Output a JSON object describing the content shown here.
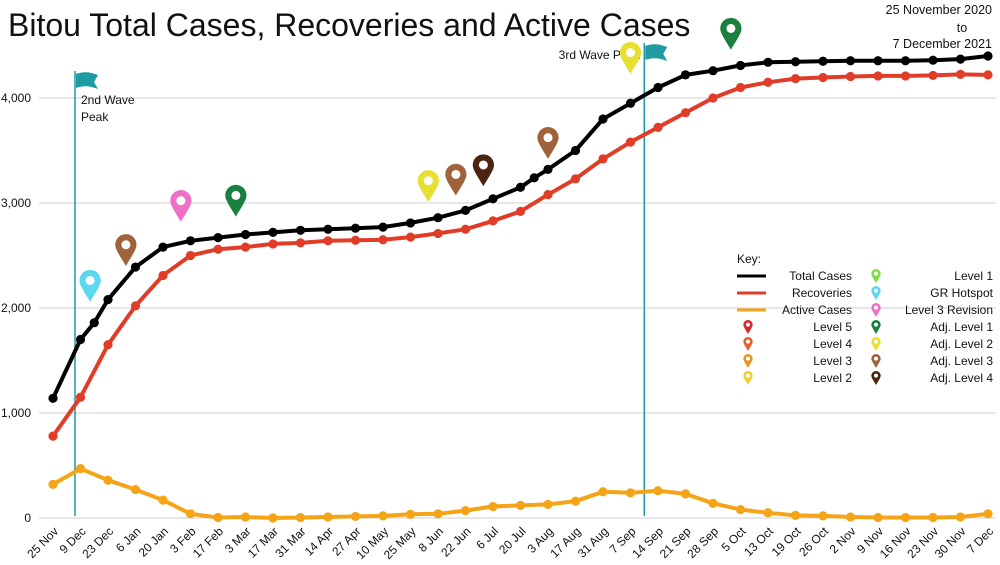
{
  "chart_data": {
    "type": "line",
    "title": "Bitou Total Cases, Recoveries and Active Cases",
    "date_range": [
      "25 November 2020",
      "to",
      "7 December 2021"
    ],
    "ylim": [
      0,
      4400
    ],
    "yticks": [
      0,
      1000,
      2000,
      3000,
      4000
    ],
    "ytick_labels": [
      "0",
      "1,000",
      "2,000",
      "3,000",
      "4,000"
    ],
    "grid": true,
    "categories": [
      "25 Nov",
      "9 Dec",
      "23 Dec",
      "6 Jan",
      "20 Jan",
      "3 Feb",
      "17 Feb",
      "3 Mar",
      "17 Mar",
      "31 Mar",
      "14 Apr",
      "27 Apr",
      "10 May",
      "25 May",
      "8 Jun",
      "22 Jun",
      "6 Jul",
      "20 Jul",
      "3 Aug",
      "17 Aug",
      "31 Aug",
      "7 Sep",
      "14 Sep",
      "21 Sep",
      "28 Sep",
      "5 Oct",
      "13 Oct",
      "19 Oct",
      "26 Oct",
      "2 Nov",
      "9 Nov",
      "16 Nov",
      "23 Nov",
      "30 Nov",
      "7 Dec"
    ],
    "series": [
      {
        "name": "Total Cases",
        "color": "#000000",
        "x": [
          0,
          1,
          1.5,
          2,
          3,
          4,
          5,
          6,
          7,
          8,
          9,
          10,
          11,
          12,
          13,
          14,
          15,
          16,
          17,
          17.5,
          18,
          19,
          20,
          21,
          22,
          23,
          24,
          25,
          26,
          27,
          28,
          29,
          30,
          31,
          32,
          33,
          34
        ],
        "values": [
          1140,
          1700,
          1860,
          2080,
          2390,
          2580,
          2640,
          2670,
          2700,
          2720,
          2740,
          2750,
          2760,
          2770,
          2810,
          2860,
          2930,
          3040,
          3150,
          3240,
          3320,
          3500,
          3800,
          3950,
          4100,
          4220,
          4260,
          4310,
          4340,
          4345,
          4350,
          4355,
          4355,
          4355,
          4360,
          4370,
          4400
        ]
      },
      {
        "name": "Recoveries",
        "color": "#e03c28",
        "x": [
          0,
          1,
          2,
          3,
          4,
          5,
          6,
          7,
          8,
          9,
          10,
          11,
          12,
          13,
          14,
          15,
          16,
          17,
          18,
          19,
          20,
          21,
          22,
          23,
          24,
          25,
          26,
          27,
          28,
          29,
          30,
          31,
          32,
          33,
          34
        ],
        "values": [
          780,
          1150,
          1650,
          2020,
          2310,
          2500,
          2560,
          2580,
          2610,
          2620,
          2640,
          2645,
          2650,
          2675,
          2710,
          2750,
          2830,
          2920,
          3080,
          3230,
          3420,
          3580,
          3720,
          3860,
          4000,
          4100,
          4150,
          4185,
          4195,
          4205,
          4210,
          4210,
          4215,
          4225,
          4220
        ]
      },
      {
        "name": "Active Cases",
        "color": "#f5a418",
        "x": [
          0,
          1,
          2,
          3,
          4,
          5,
          6,
          7,
          8,
          9,
          10,
          11,
          12,
          13,
          14,
          15,
          16,
          17,
          18,
          19,
          20,
          21,
          22,
          23,
          24,
          25,
          26,
          27,
          28,
          29,
          30,
          31,
          32,
          33,
          34
        ],
        "values": [
          320,
          470,
          360,
          270,
          170,
          40,
          5,
          10,
          0,
          5,
          10,
          15,
          20,
          35,
          40,
          70,
          110,
          120,
          130,
          160,
          250,
          240,
          260,
          230,
          140,
          80,
          50,
          25,
          20,
          10,
          5,
          5,
          5,
          10,
          40
        ]
      }
    ],
    "annotations": [
      {
        "label_lines": [
          "2nd Wave",
          "Peak"
        ],
        "x": 0.8,
        "color": "#1f9ba3"
      },
      {
        "label_lines": [
          "3rd Wave Peak"
        ],
        "x": 21.5,
        "color": "#1f9ba3"
      }
    ],
    "markers": [
      {
        "x": 1.35,
        "value": 2060,
        "color": "#5bd8f0",
        "level": "GR Hotspot"
      },
      {
        "x": 2.65,
        "value": 2400,
        "color": "#a0623a",
        "level": "Adj. Level 3"
      },
      {
        "x": 4.65,
        "value": 2820,
        "color": "#f06fc8",
        "level": "Level 3 Revision"
      },
      {
        "x": 6.65,
        "value": 2870,
        "color": "#1a8040",
        "level": "Adj. Level 1"
      },
      {
        "x": 13.65,
        "value": 3010,
        "color": "#e8e030",
        "level": "Adj. Level 2"
      },
      {
        "x": 14.65,
        "value": 3070,
        "color": "#a0623a",
        "level": "Adj. Level 3"
      },
      {
        "x": 15.65,
        "value": 3160,
        "color": "#4a2410",
        "level": "Adj. Level 4"
      },
      {
        "x": 18.0,
        "value": 3420,
        "color": "#a0623a",
        "level": "Adj. Level 3"
      },
      {
        "x": 21.0,
        "value": 4230,
        "color": "#e8e030",
        "level": "Adj. Level 2"
      },
      {
        "x": 24.65,
        "value": 4460,
        "color": "#1a8040",
        "level": "Adj. Level 1"
      }
    ],
    "legend": {
      "title": "Key:",
      "placement": "right",
      "lines": [
        {
          "label": "Total Cases",
          "color": "#000000"
        },
        {
          "label": "Recoveries",
          "color": "#e03c28"
        },
        {
          "label": "Active Cases",
          "color": "#f5a418"
        }
      ],
      "pins_left": [
        {
          "label": "Level 5",
          "color": "#d8272b"
        },
        {
          "label": "Level 4",
          "color": "#e8602a"
        },
        {
          "label": "Level 3",
          "color": "#e8962a"
        },
        {
          "label": "Level 2",
          "color": "#f0d030"
        }
      ],
      "pins_right": [
        {
          "label": "Level 1",
          "color": "#7ee040"
        },
        {
          "label": "GR Hotspot",
          "color": "#5bd8f0"
        },
        {
          "label": "Level 3 Revision",
          "color": "#f06fc8"
        },
        {
          "label": "Adj. Level 1",
          "color": "#1a8040"
        },
        {
          "label": "Adj. Level 2",
          "color": "#e8e030"
        },
        {
          "label": "Adj. Level 3",
          "color": "#a0623a"
        },
        {
          "label": "Adj. Level 4",
          "color": "#4a2410"
        }
      ]
    }
  }
}
